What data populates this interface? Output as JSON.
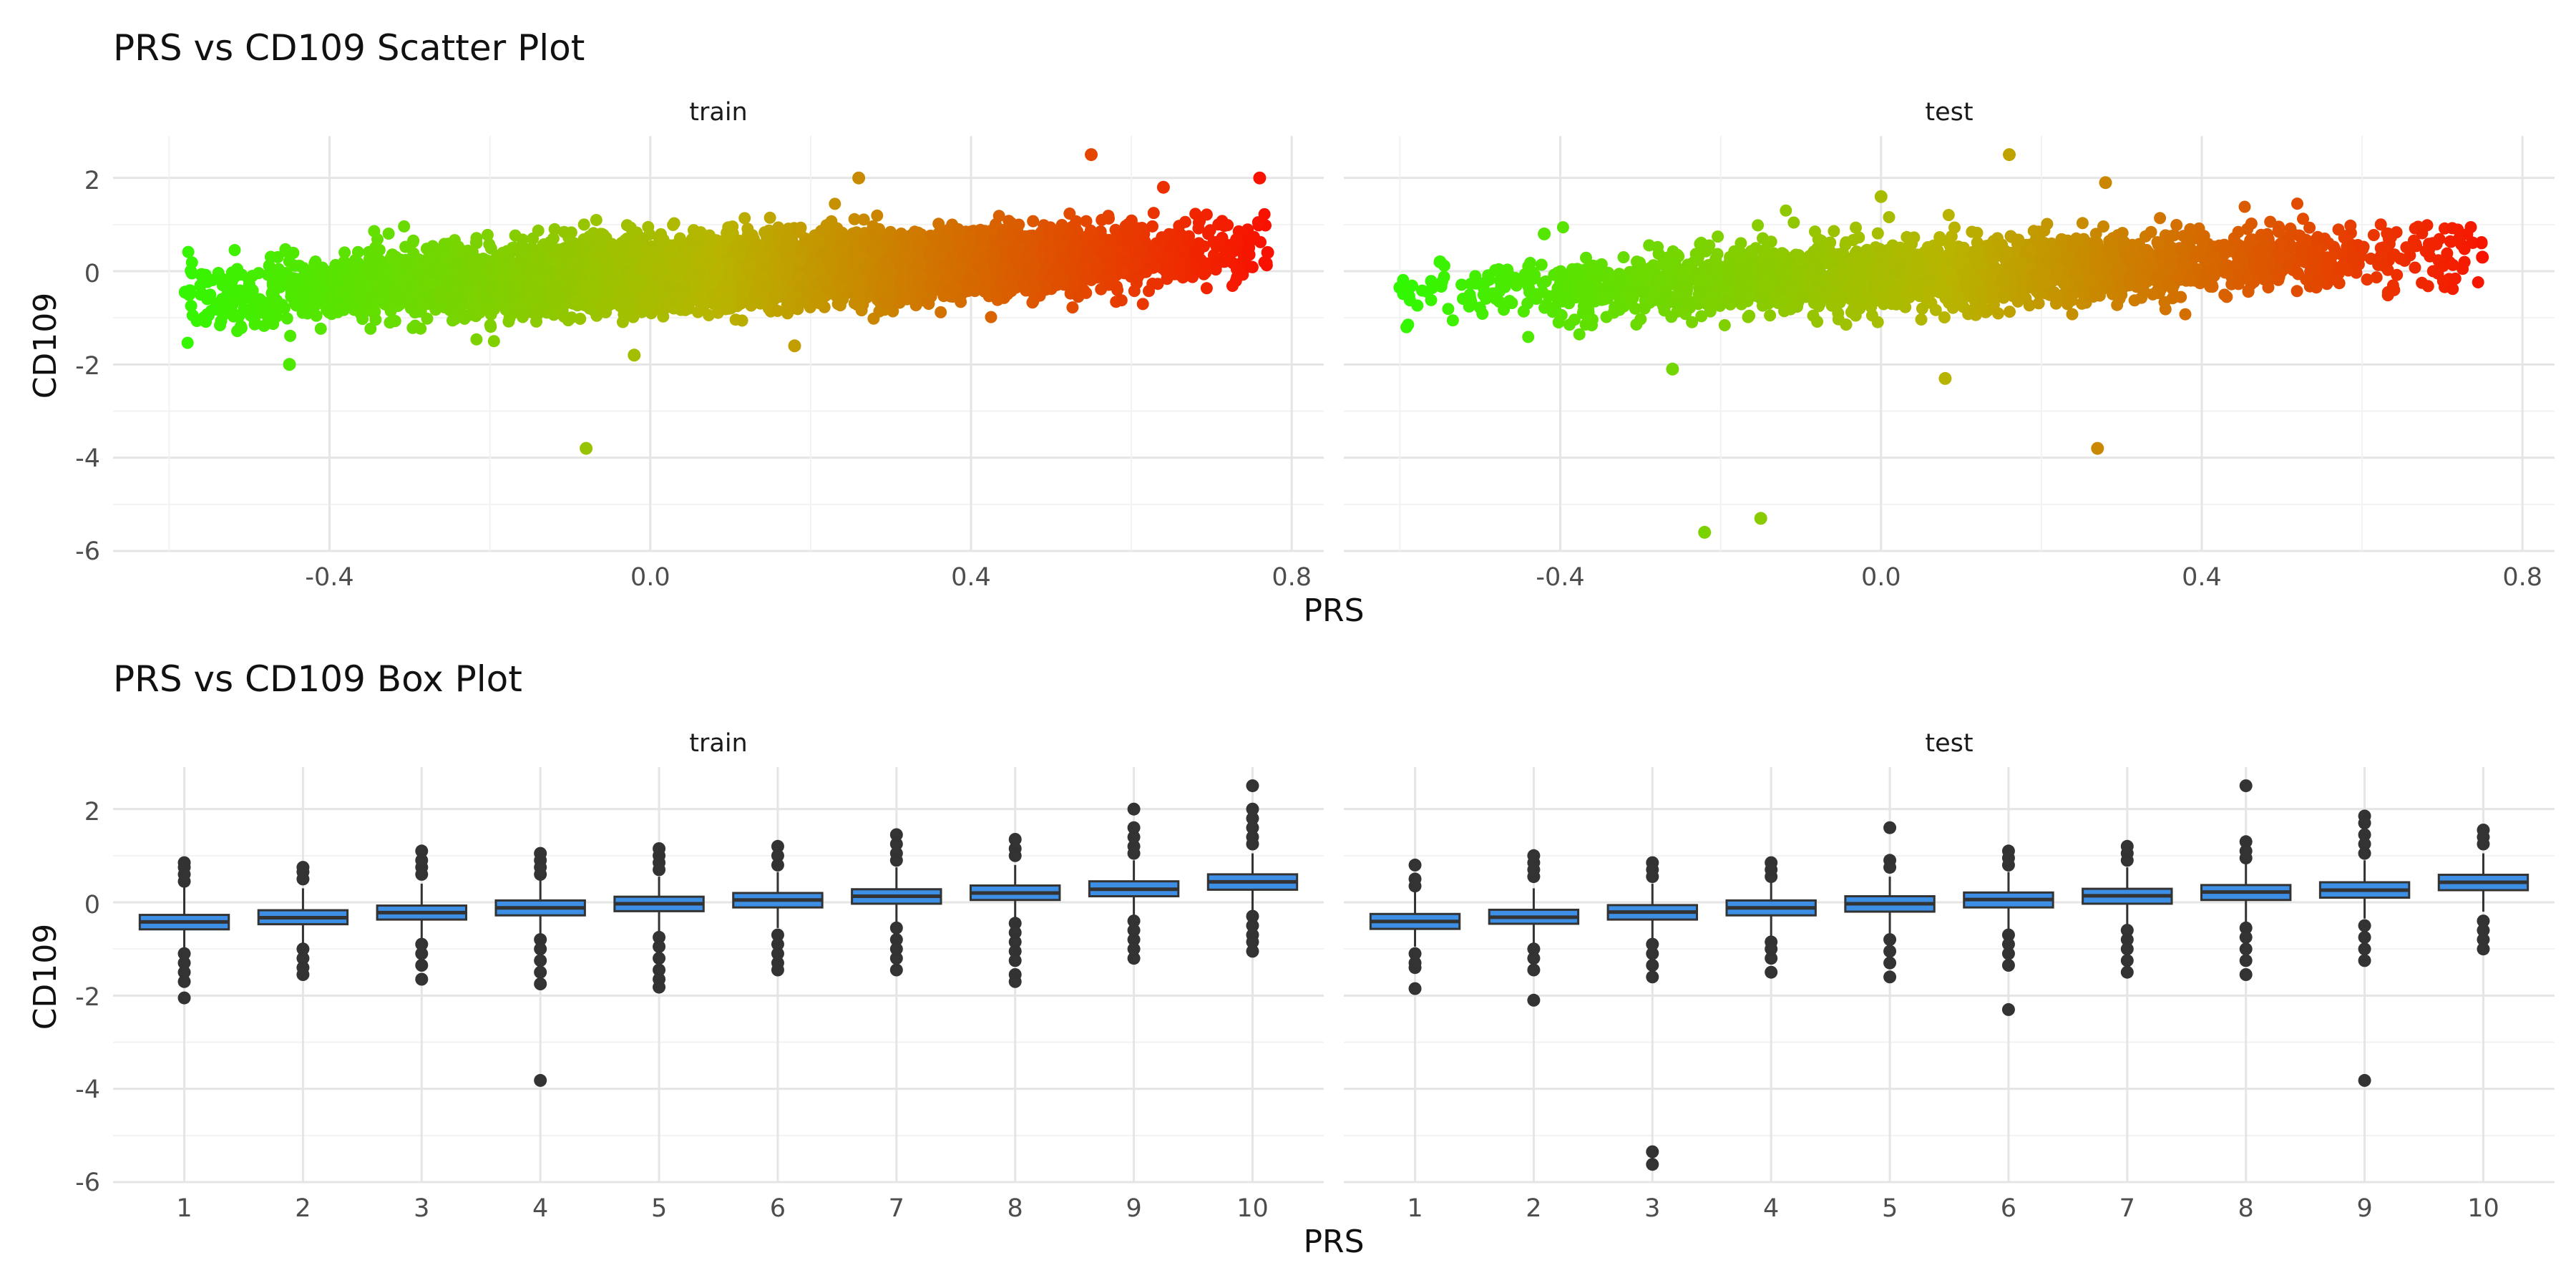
{
  "chart_data": [
    {
      "type": "scatter",
      "title": "PRS vs CD109 Scatter Plot",
      "xlabel": "PRS",
      "ylabel": "CD109",
      "xlim": [
        -0.67,
        0.84
      ],
      "ylim": [
        -6.0,
        2.9
      ],
      "x_ticks": [
        -0.4,
        0.0,
        0.4,
        0.8
      ],
      "x_tick_labels": [
        "-0.4",
        "0.0",
        "0.4",
        "0.8"
      ],
      "y_ticks": [
        2,
        0,
        -2,
        -4,
        -6
      ],
      "y_tick_labels": [
        "2",
        "0",
        "-2",
        "-4",
        "-6"
      ],
      "grid": true,
      "legend": "none",
      "color_scale": {
        "low": "#22ff00",
        "mid": "#b8b400",
        "high": "#ff0000",
        "variable": "PRS"
      },
      "facets": [
        "train",
        "test"
      ],
      "trend": {
        "slope": 1.25,
        "intercept": -0.08,
        "spread_sd": 0.36
      },
      "series": [
        {
          "name": "train",
          "point_count_approx": 6000,
          "x_range": [
            -0.58,
            0.77
          ],
          "notable_points": [
            {
              "x": -0.58,
              "y": -0.45
            },
            {
              "x": -0.45,
              "y": -2.0
            },
            {
              "x": -0.08,
              "y": -3.8
            },
            {
              "x": 0.26,
              "y": 2.0
            },
            {
              "x": 0.55,
              "y": 2.5
            },
            {
              "x": 0.64,
              "y": 1.8
            },
            {
              "x": 0.76,
              "y": 2.0
            },
            {
              "x": 0.77,
              "y": 0.4
            },
            {
              "x": 0.18,
              "y": -1.6
            },
            {
              "x": -0.02,
              "y": -1.8
            }
          ]
        },
        {
          "name": "test",
          "point_count_approx": 2500,
          "x_range": [
            -0.6,
            0.75
          ],
          "notable_points": [
            {
              "x": -0.6,
              "y": -0.35
            },
            {
              "x": -0.59,
              "y": -0.4
            },
            {
              "x": -0.55,
              "y": 0.2
            },
            {
              "x": -0.42,
              "y": 0.8
            },
            {
              "x": -0.22,
              "y": -5.6
            },
            {
              "x": -0.15,
              "y": -5.3
            },
            {
              "x": 0.16,
              "y": 2.5
            },
            {
              "x": 0.28,
              "y": 1.9
            },
            {
              "x": 0.27,
              "y": -3.8
            },
            {
              "x": 0.08,
              "y": -2.3
            },
            {
              "x": -0.26,
              "y": -2.1
            },
            {
              "x": 0.75,
              "y": 0.3
            },
            {
              "x": 0.0,
              "y": 1.6
            }
          ]
        }
      ]
    },
    {
      "type": "box",
      "title": "PRS vs CD109 Box Plot",
      "xlabel": "PRS",
      "ylabel": "CD109",
      "categories": [
        "1",
        "2",
        "3",
        "4",
        "5",
        "6",
        "7",
        "8",
        "9",
        "10"
      ],
      "ylim": [
        -6.0,
        2.9
      ],
      "y_ticks": [
        2,
        0,
        -2,
        -4,
        -6
      ],
      "y_tick_labels": [
        "2",
        "0",
        "-2",
        "-4",
        "-6"
      ],
      "grid": true,
      "legend": "none",
      "box_fill": "#3d8fe6",
      "outline_color": "#333333",
      "facets": [
        "train",
        "test"
      ],
      "series": [
        {
          "name": "train",
          "boxes": [
            {
              "q1": -0.58,
              "median": -0.42,
              "q3": -0.27,
              "whisker_low": -1.0,
              "whisker_high": 0.33,
              "outliers": [
                0.85,
                0.75,
                0.6,
                0.45,
                -1.1,
                -1.3,
                -1.5,
                -1.7,
                -2.05
              ]
            },
            {
              "q1": -0.47,
              "median": -0.33,
              "q3": -0.17,
              "whisker_low": -0.9,
              "whisker_high": 0.3,
              "outliers": [
                0.75,
                0.65,
                0.5,
                -1.0,
                -1.2,
                -1.4,
                -1.55
              ]
            },
            {
              "q1": -0.37,
              "median": -0.22,
              "q3": -0.07,
              "whisker_low": -0.8,
              "whisker_high": 0.4,
              "outliers": [
                1.1,
                0.9,
                0.75,
                0.6,
                -0.9,
                -1.1,
                -1.35,
                -1.65
              ]
            },
            {
              "q1": -0.28,
              "median": -0.12,
              "q3": 0.04,
              "whisker_low": -0.75,
              "whisker_high": 0.5,
              "outliers": [
                1.05,
                0.9,
                0.75,
                0.6,
                -0.8,
                -1.0,
                -1.25,
                -1.5,
                -1.75,
                -3.82
              ]
            },
            {
              "q1": -0.19,
              "median": -0.03,
              "q3": 0.12,
              "whisker_low": -0.65,
              "whisker_high": 0.55,
              "outliers": [
                1.15,
                1.0,
                0.85,
                0.7,
                -0.75,
                -0.95,
                -1.2,
                -1.45,
                -1.65,
                -1.82
              ]
            },
            {
              "q1": -0.11,
              "median": 0.05,
              "q3": 0.2,
              "whisker_low": -0.55,
              "whisker_high": 0.65,
              "outliers": [
                1.2,
                1.0,
                0.8,
                -0.7,
                -0.9,
                -1.1,
                -1.3,
                -1.45
              ]
            },
            {
              "q1": -0.03,
              "median": 0.13,
              "q3": 0.28,
              "whisker_low": -0.45,
              "whisker_high": 0.75,
              "outliers": [
                1.45,
                1.25,
                1.05,
                0.9,
                -0.55,
                -0.8,
                -1.0,
                -1.2,
                -1.45
              ]
            },
            {
              "q1": 0.05,
              "median": 0.2,
              "q3": 0.36,
              "whisker_low": -0.4,
              "whisker_high": 0.8,
              "outliers": [
                1.35,
                1.15,
                1.0,
                -0.45,
                -0.65,
                -0.85,
                -1.05,
                -1.25,
                -1.55,
                -1.7
              ]
            },
            {
              "q1": 0.13,
              "median": 0.28,
              "q3": 0.45,
              "whisker_low": -0.32,
              "whisker_high": 0.9,
              "outliers": [
                2.0,
                1.6,
                1.4,
                1.2,
                1.05,
                -0.4,
                -0.6,
                -0.8,
                -1.0,
                -1.2
              ]
            },
            {
              "q1": 0.27,
              "median": 0.44,
              "q3": 0.6,
              "whisker_low": -0.2,
              "whisker_high": 1.05,
              "outliers": [
                2.5,
                2.0,
                1.8,
                1.6,
                1.4,
                1.25,
                -0.3,
                -0.5,
                -0.7,
                -0.85,
                -1.05
              ]
            }
          ]
        },
        {
          "name": "test",
          "boxes": [
            {
              "q1": -0.57,
              "median": -0.41,
              "q3": -0.25,
              "whisker_low": -0.95,
              "whisker_high": 0.25,
              "outliers": [
                0.8,
                0.5,
                0.35,
                -1.1,
                -1.3,
                -1.4,
                -1.85
              ]
            },
            {
              "q1": -0.46,
              "median": -0.32,
              "q3": -0.16,
              "whisker_low": -0.9,
              "whisker_high": 0.3,
              "outliers": [
                1.0,
                0.85,
                0.7,
                0.55,
                -1.0,
                -1.2,
                -1.45,
                -2.1
              ]
            },
            {
              "q1": -0.37,
              "median": -0.21,
              "q3": -0.06,
              "whisker_low": -0.8,
              "whisker_high": 0.4,
              "outliers": [
                0.85,
                0.7,
                0.55,
                -0.9,
                -1.1,
                -1.35,
                -1.6,
                -5.35,
                -5.62
              ]
            },
            {
              "q1": -0.28,
              "median": -0.12,
              "q3": 0.04,
              "whisker_low": -0.75,
              "whisker_high": 0.45,
              "outliers": [
                0.85,
                0.7,
                0.55,
                -0.85,
                -1.0,
                -1.2,
                -1.5
              ]
            },
            {
              "q1": -0.2,
              "median": -0.03,
              "q3": 0.13,
              "whisker_low": -0.7,
              "whisker_high": 0.55,
              "outliers": [
                1.6,
                0.9,
                0.75,
                -0.8,
                -1.05,
                -1.3,
                -1.6
              ]
            },
            {
              "q1": -0.11,
              "median": 0.06,
              "q3": 0.21,
              "whisker_low": -0.6,
              "whisker_high": 0.65,
              "outliers": [
                1.1,
                0.95,
                0.8,
                -0.7,
                -0.9,
                -1.1,
                -1.35,
                -2.3
              ]
            },
            {
              "q1": -0.03,
              "median": 0.14,
              "q3": 0.29,
              "whisker_low": -0.5,
              "whisker_high": 0.75,
              "outliers": [
                1.2,
                1.05,
                0.9,
                -0.6,
                -0.8,
                -1.0,
                -1.25,
                -1.5
              ]
            },
            {
              "q1": 0.05,
              "median": 0.22,
              "q3": 0.37,
              "whisker_low": -0.45,
              "whisker_high": 0.85,
              "outliers": [
                2.5,
                1.3,
                1.1,
                0.95,
                -0.55,
                -0.75,
                -1.0,
                -1.25,
                -1.55
              ]
            },
            {
              "q1": 0.1,
              "median": 0.26,
              "q3": 0.43,
              "whisker_low": -0.35,
              "whisker_high": 0.9,
              "outliers": [
                1.85,
                1.7,
                1.45,
                1.25,
                1.05,
                -0.5,
                -0.75,
                -1.0,
                -1.25,
                -3.82
              ]
            },
            {
              "q1": 0.26,
              "median": 0.43,
              "q3": 0.59,
              "whisker_low": -0.2,
              "whisker_high": 1.05,
              "outliers": [
                1.55,
                1.4,
                1.25,
                -0.4,
                -0.6,
                -0.8,
                -1.0
              ]
            }
          ]
        }
      ]
    }
  ]
}
